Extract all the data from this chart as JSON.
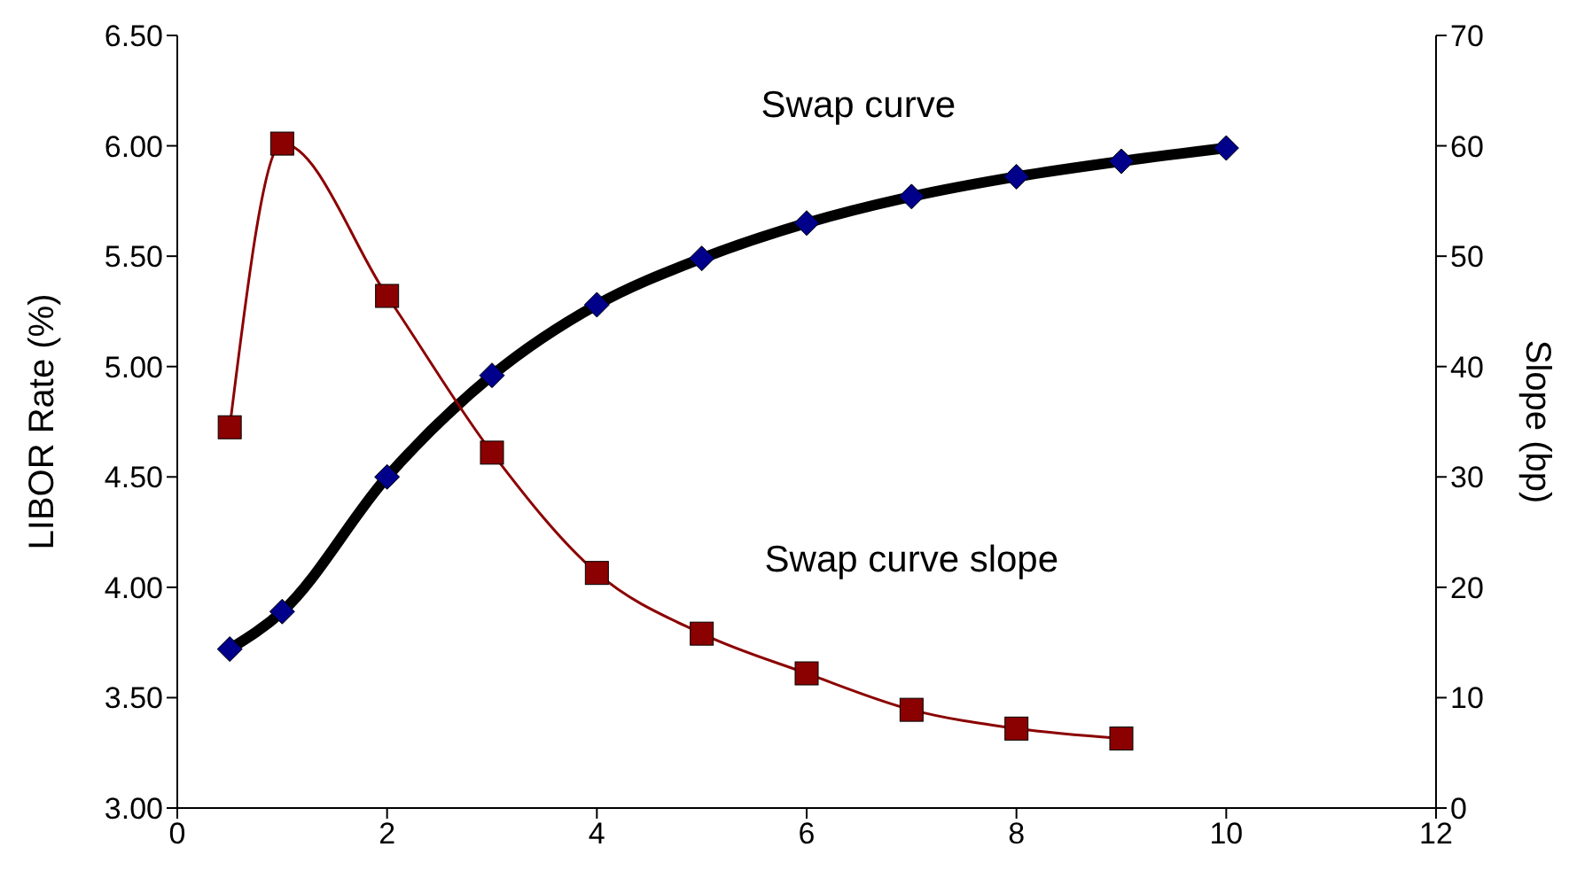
{
  "chart_data": {
    "type": "line",
    "x": [
      0.5,
      1,
      2,
      3,
      4,
      5,
      6,
      7,
      8,
      9,
      10
    ],
    "series": [
      {
        "name": "Swap curve",
        "color": "#000000",
        "marker": "diamond",
        "values": [
          3.72,
          3.89,
          4.5,
          4.96,
          5.28,
          5.49,
          5.65,
          5.77,
          5.86,
          5.93,
          5.99
        ]
      },
      {
        "name": "Swap curve slope",
        "color": "#8b0000",
        "marker": "square",
        "axis": "y2",
        "values": [
          34.5,
          60.2,
          46.4,
          32.2,
          21.3,
          15.8,
          12.2,
          8.9,
          7.2,
          6.3,
          null
        ]
      }
    ],
    "ylabel": "LIBOR Rate (%)",
    "y2label": "Slope (bp)",
    "xlim": [
      0,
      12
    ],
    "xticks": [
      0,
      2,
      4,
      6,
      8,
      10,
      12
    ],
    "ylim": [
      3,
      6.5
    ],
    "yticks": [
      {
        "value": 3,
        "label": "3.00"
      },
      {
        "value": 3.5,
        "label": "3.50"
      },
      {
        "value": 4,
        "label": "4.00"
      },
      {
        "value": 4.5,
        "label": "4.50"
      },
      {
        "value": 5,
        "label": "5.00"
      },
      {
        "value": 5.5,
        "label": "5.50"
      },
      {
        "value": 6,
        "label": "6.00"
      },
      {
        "value": 6.5,
        "label": "6.50"
      }
    ],
    "y2lim": [
      0,
      70
    ],
    "y2ticks": [
      0,
      10,
      20,
      30,
      40,
      50,
      60,
      70
    ],
    "grid": false,
    "legend": false
  }
}
